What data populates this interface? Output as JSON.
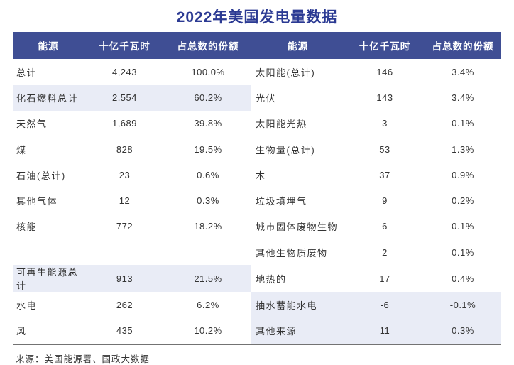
{
  "title": "2022年美国发电量数据",
  "header": {
    "energy": "能源",
    "value": "十亿千瓦时",
    "share": "占总数的份额"
  },
  "left_rows": [
    {
      "label": "总计",
      "value": "4,243",
      "share": "100.0%",
      "shaded": false
    },
    {
      "label": "化石燃料总计",
      "value": "2.554",
      "share": "60.2%",
      "shaded": true
    },
    {
      "label": "天然气",
      "value": "1,689",
      "share": "39.8%",
      "shaded": false
    },
    {
      "label": "煤",
      "value": "828",
      "share": "19.5%",
      "shaded": false
    },
    {
      "label": "石油(总计)",
      "value": "23",
      "share": "0.6%",
      "shaded": false
    },
    {
      "label": "其他气体",
      "value": "12",
      "share": "0.3%",
      "shaded": false
    },
    {
      "label": "核能",
      "value": "772",
      "share": "18.2%",
      "shaded": false
    },
    {
      "label": "",
      "value": "",
      "share": "",
      "shaded": false
    },
    {
      "label": "可再生能源总计",
      "value": "913",
      "share": "21.5%",
      "shaded": true
    },
    {
      "label": "水电",
      "value": "262",
      "share": "6.2%",
      "shaded": false
    },
    {
      "label": "风",
      "value": "435",
      "share": "10.2%",
      "shaded": false
    }
  ],
  "right_rows": [
    {
      "label": "太阳能(总计)",
      "value": "146",
      "share": "3.4%",
      "shaded": false
    },
    {
      "label": "光伏",
      "value": "143",
      "share": "3.4%",
      "shaded": false
    },
    {
      "label": "太阳能光热",
      "value": "3",
      "share": "0.1%",
      "shaded": false
    },
    {
      "label": "生物量(总计)",
      "value": "53",
      "share": "1.3%",
      "shaded": false
    },
    {
      "label": "木",
      "value": "37",
      "share": "0.9%",
      "shaded": false
    },
    {
      "label": "垃圾填埋气",
      "value": "9",
      "share": "0.2%",
      "shaded": false
    },
    {
      "label": "城市固体废物生物",
      "value": "6",
      "share": "0.1%",
      "shaded": false
    },
    {
      "label": "其他生物质废物",
      "value": "2",
      "share": "0.1%",
      "shaded": false
    },
    {
      "label": "地热的",
      "value": "17",
      "share": "0.4%",
      "shaded": false
    },
    {
      "label": "抽水蓄能水电",
      "value": "-6",
      "share": "-0.1%",
      "shaded": true
    },
    {
      "label": "其他来源",
      "value": "11",
      "share": "0.3%",
      "shaded": true
    }
  ],
  "footer": "来源：美国能源署、国政大数据",
  "colors": {
    "header_bg": "#3f4e94",
    "row_highlight": "#e9ecf6",
    "title": "#2b3a93",
    "text": "#333333",
    "table_border": "#737373"
  },
  "chart_data": {
    "type": "table",
    "title": "2022年美国发电量数据",
    "columns": [
      "能源",
      "十亿千瓦时",
      "占总数的份额"
    ],
    "left_table_rows": [
      [
        "总计",
        "4,243",
        "100.0%"
      ],
      [
        "化石燃料总计",
        "2.554",
        "60.2%"
      ],
      [
        "天然气",
        "1,689",
        "39.8%"
      ],
      [
        "煤",
        "828",
        "19.5%"
      ],
      [
        "石油(总计)",
        "23",
        "0.6%"
      ],
      [
        "其他气体",
        "12",
        "0.3%"
      ],
      [
        "核能",
        "772",
        "18.2%"
      ],
      [
        "",
        "",
        ""
      ],
      [
        "可再生能源总计",
        "913",
        "21.5%"
      ],
      [
        "水电",
        "262",
        "6.2%"
      ],
      [
        "风",
        "435",
        "10.2%"
      ]
    ],
    "right_table_rows": [
      [
        "太阳能(总计)",
        "146",
        "3.4%"
      ],
      [
        "光伏",
        "143",
        "3.4%"
      ],
      [
        "太阳能光热",
        "3",
        "0.1%"
      ],
      [
        "生物量(总计)",
        "53",
        "1.3%"
      ],
      [
        "木",
        "37",
        "0.9%"
      ],
      [
        "垃圾填埋气",
        "9",
        "0.2%"
      ],
      [
        "城市固体废物生物",
        "6",
        "0.1%"
      ],
      [
        "其他生物质废物",
        "2",
        "0.1%"
      ],
      [
        "地热的",
        "17",
        "0.4%"
      ],
      [
        "抽水蓄能水电",
        "-6",
        "-0.1%"
      ],
      [
        "其他来源",
        "11",
        "0.3%"
      ]
    ],
    "source_note": "来源：美国能源署、国政大数据",
    "highlighted_rows_left": [
      "化石燃料总计",
      "可再生能源总计"
    ],
    "highlighted_rows_right": [
      "抽水蓄能水电",
      "其他来源"
    ]
  }
}
